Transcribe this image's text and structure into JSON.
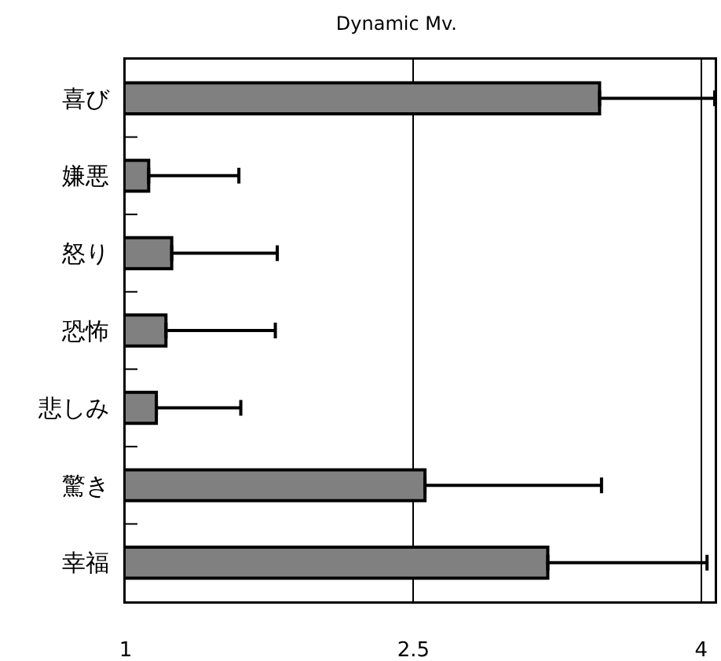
{
  "chart_data": {
    "type": "bar",
    "orientation": "horizontal",
    "title": "Dynamic Mv.",
    "categories": [
      "喜び",
      "嫌悪",
      "怒り",
      "恐怖",
      "悲しみ",
      "驚き",
      "幸福"
    ],
    "values": [
      3.47,
      1.12,
      1.24,
      1.21,
      1.16,
      2.56,
      3.2
    ],
    "errors": [
      [
        3.47,
        4.07
      ],
      [
        1.12,
        1.59
      ],
      [
        1.24,
        1.79
      ],
      [
        1.21,
        1.78
      ],
      [
        1.16,
        1.6
      ],
      [
        2.56,
        3.48
      ],
      [
        3.2,
        4.03
      ]
    ],
    "color": "#808080",
    "xlim": [
      1,
      4.07
    ],
    "xticks": [
      1,
      2.5,
      4
    ],
    "grid": "x"
  }
}
